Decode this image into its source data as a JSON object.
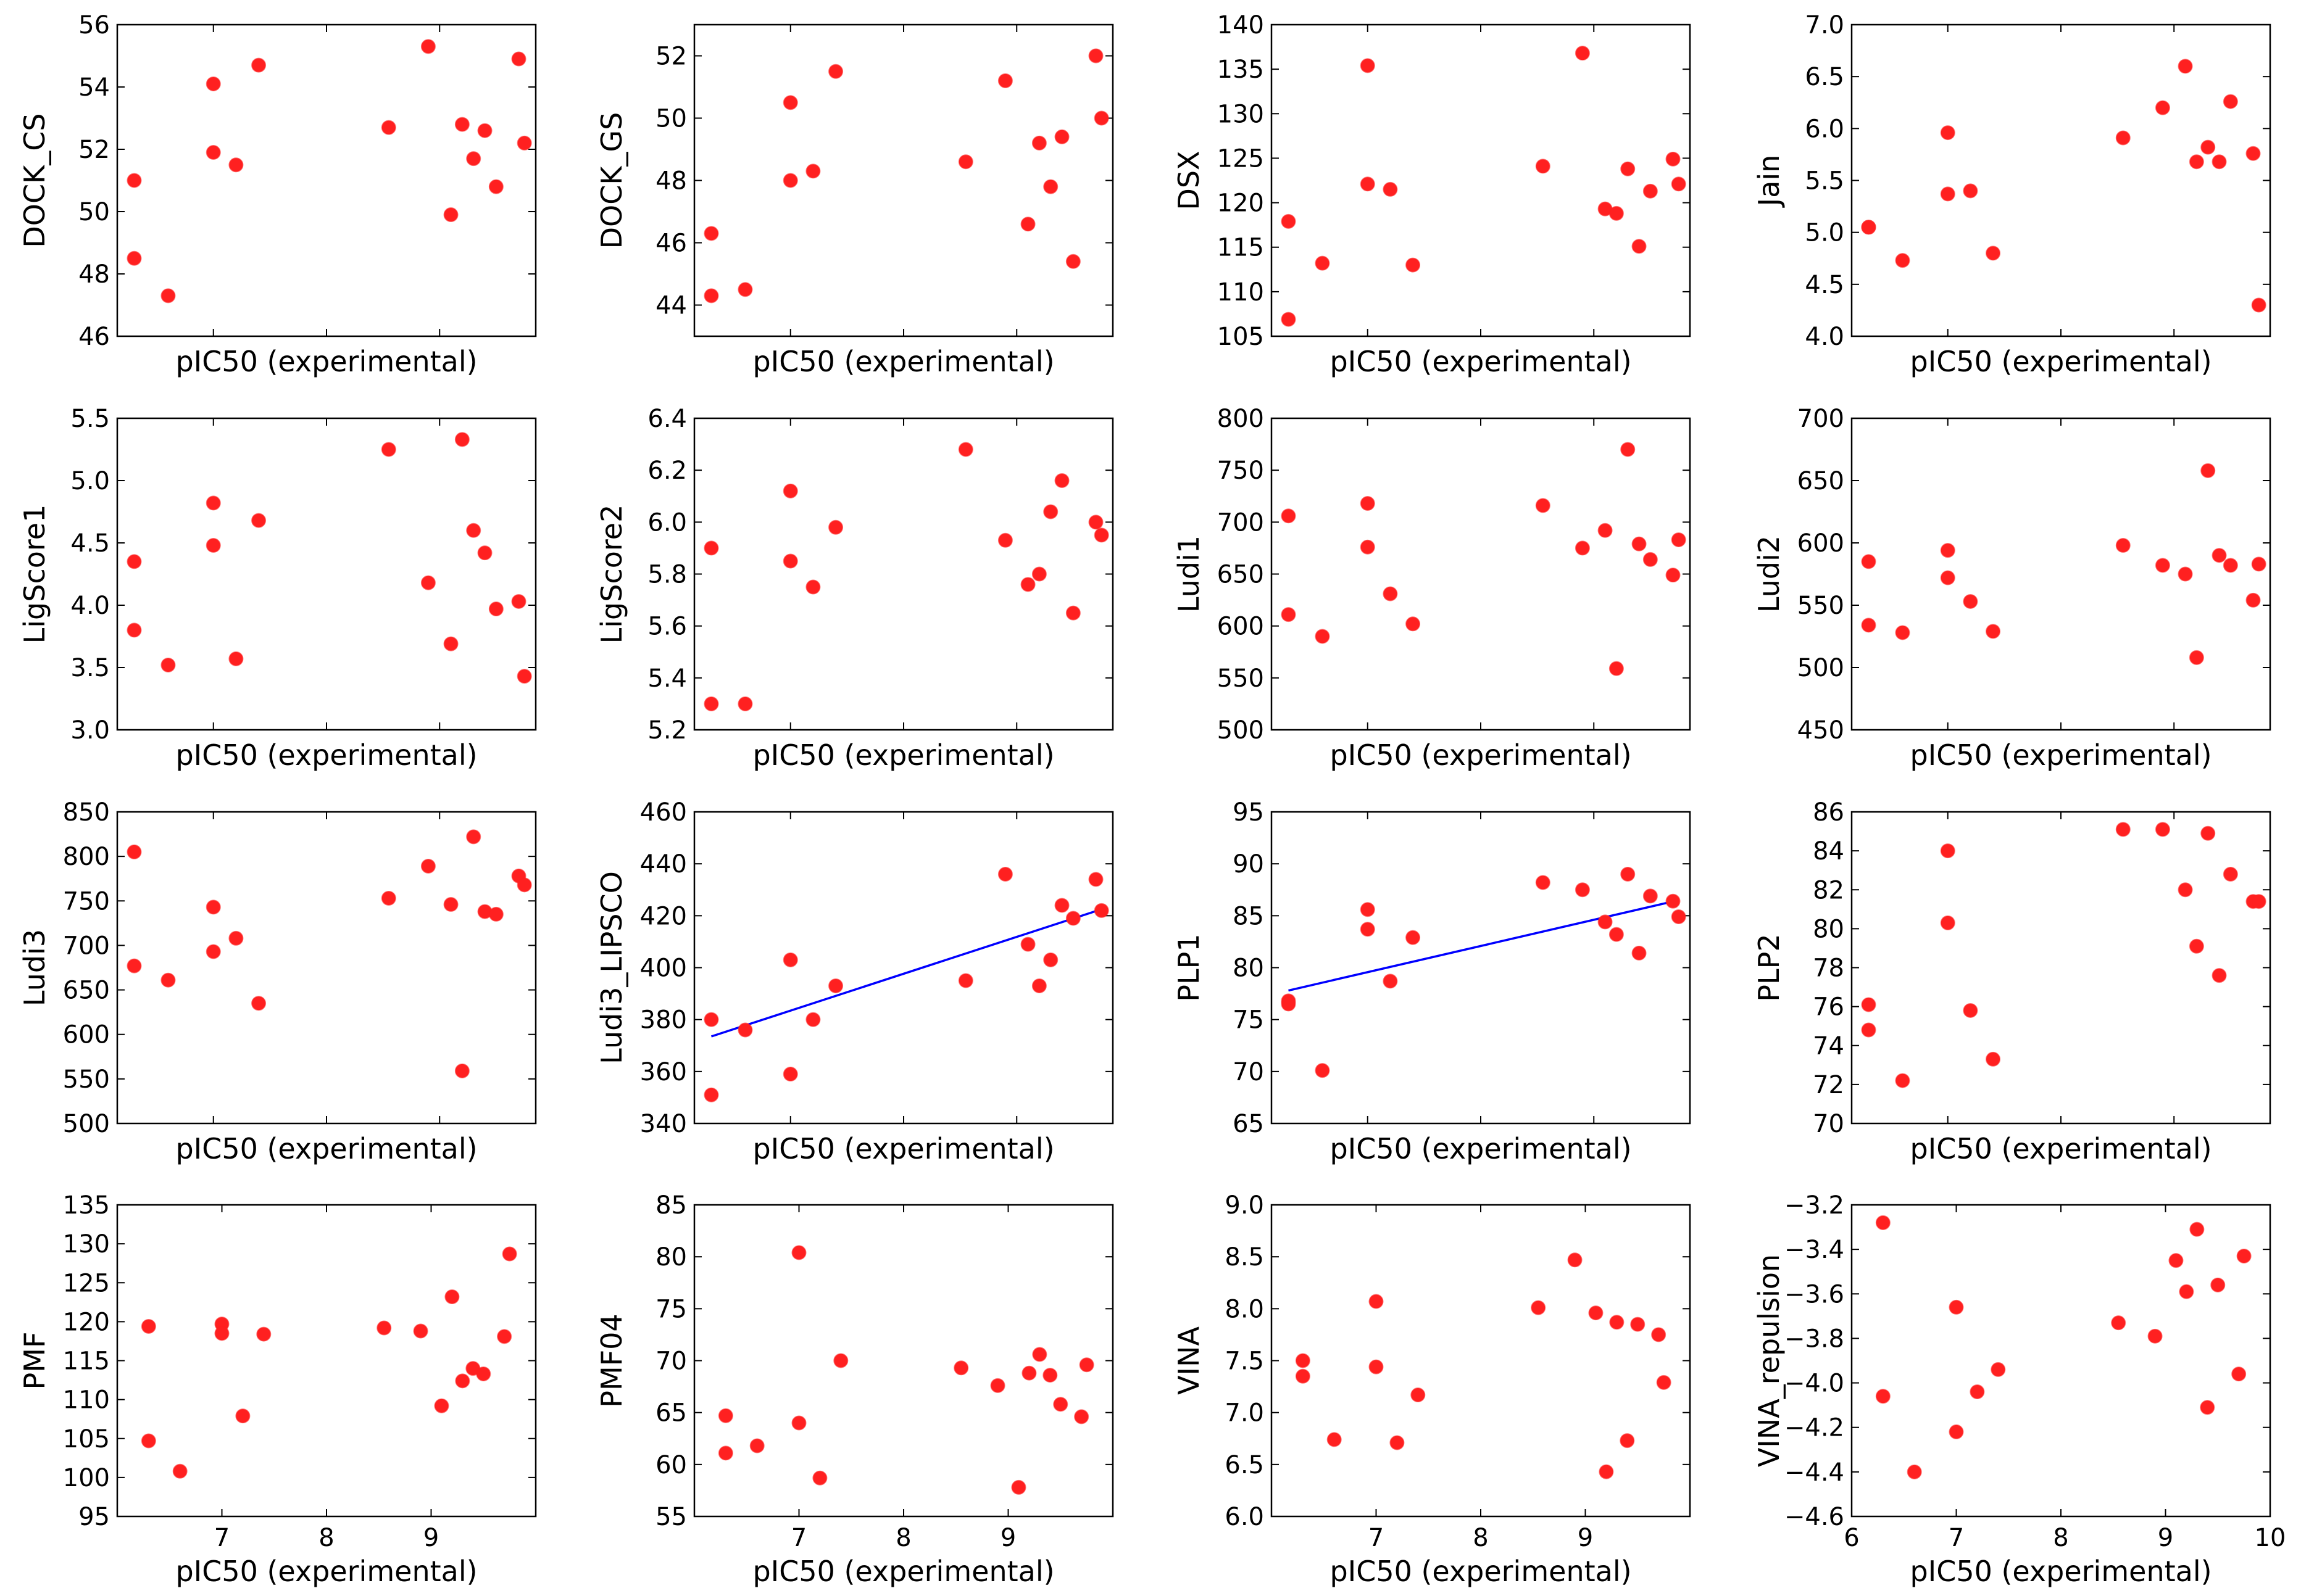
{
  "chart_data": {
    "type": "scatter",
    "layout": {
      "rows": 4,
      "cols": 4
    },
    "shared_x": [
      6.3,
      6.3,
      6.6,
      7.0,
      7.0,
      7.2,
      7.4,
      8.55,
      8.9,
      9.1,
      9.2,
      9.3,
      9.4,
      9.5,
      9.7,
      9.75
    ],
    "xlim": [
      6.15,
      9.85
    ],
    "xticks": [
      7,
      8,
      9
    ],
    "xlabel": "pIC50 (experimental)",
    "bottom_row_xlim": [
      6,
      10
    ],
    "bottom_row_xticks": [
      7,
      8,
      9
    ],
    "last_panel_xticks": [
      6,
      7,
      8,
      9,
      10
    ],
    "panels": [
      {
        "ylabel": "DOCK_CS",
        "ylim": [
          46,
          56
        ],
        "yticks": [
          "46",
          "48",
          "50",
          "52",
          "54",
          "56"
        ],
        "values": [
          51.0,
          48.5,
          47.3,
          54.1,
          51.9,
          51.5,
          54.7,
          52.7,
          55.3,
          49.9,
          52.8,
          51.7,
          52.6,
          50.8,
          54.9,
          52.2
        ]
      },
      {
        "ylabel": "DOCK_GS",
        "ylim": [
          43,
          53
        ],
        "yticks": [
          "44",
          "46",
          "48",
          "50",
          "52"
        ],
        "values": [
          46.3,
          44.3,
          44.5,
          50.5,
          48.0,
          48.3,
          51.5,
          48.6,
          51.2,
          46.6,
          49.2,
          47.8,
          49.4,
          45.4,
          52.0,
          50.0
        ]
      },
      {
        "ylabel": "DSX",
        "ylim": [
          105,
          140
        ],
        "yticks": [
          "105",
          "110",
          "115",
          "120",
          "125",
          "130",
          "135",
          "140"
        ],
        "values": [
          117.9,
          106.9,
          113.2,
          135.4,
          122.1,
          121.5,
          113.0,
          124.1,
          136.8,
          119.3,
          118.8,
          123.8,
          115.1,
          121.3,
          124.9,
          122.1
        ]
      },
      {
        "ylabel": "Jain",
        "ylim": [
          4.0,
          7.0
        ],
        "yticks": [
          "4.0",
          "4.5",
          "5.0",
          "5.5",
          "6.0",
          "6.5",
          "7.0"
        ],
        "values": [
          5.05,
          5.05,
          4.73,
          5.96,
          5.37,
          5.4,
          4.8,
          5.91,
          6.2,
          6.6,
          5.68,
          5.82,
          5.68,
          6.26,
          5.76,
          4.3
        ]
      },
      {
        "ylabel": "LigScore1",
        "ylim": [
          3.0,
          5.5
        ],
        "yticks": [
          "3.0",
          "3.5",
          "4.0",
          "4.5",
          "5.0",
          "5.5"
        ],
        "values": [
          4.35,
          3.8,
          3.52,
          4.82,
          4.48,
          3.57,
          4.68,
          5.25,
          4.18,
          3.69,
          5.33,
          4.6,
          4.42,
          3.97,
          4.03,
          3.43
        ]
      },
      {
        "ylabel": "LigScore2",
        "ylim": [
          5.2,
          6.4
        ],
        "yticks": [
          "5.2",
          "5.4",
          "5.6",
          "5.8",
          "6.0",
          "6.2",
          "6.4"
        ],
        "values": [
          5.9,
          5.3,
          5.3,
          6.12,
          5.85,
          5.75,
          5.98,
          6.28,
          5.93,
          5.76,
          5.8,
          6.04,
          6.16,
          5.65,
          6.0,
          5.95
        ]
      },
      {
        "ylabel": "Ludi1",
        "ylim": [
          500,
          800
        ],
        "yticks": [
          "500",
          "550",
          "600",
          "650",
          "700",
          "750",
          "800"
        ],
        "values": [
          706,
          611,
          590,
          718,
          676,
          631,
          602,
          716,
          675,
          692,
          559,
          770,
          679,
          664,
          649,
          683
        ]
      },
      {
        "ylabel": "Ludi2",
        "ylim": [
          450,
          700
        ],
        "yticks": [
          "450",
          "500",
          "550",
          "600",
          "650",
          "700"
        ],
        "values": [
          585,
          534,
          528,
          594,
          572,
          553,
          529,
          598,
          582,
          575,
          508,
          658,
          590,
          582,
          554,
          583
        ]
      },
      {
        "ylabel": "Ludi3",
        "ylim": [
          500,
          850
        ],
        "yticks": [
          "500",
          "550",
          "600",
          "650",
          "700",
          "750",
          "800",
          "850"
        ],
        "values": [
          805,
          677,
          661,
          743,
          693,
          708,
          635,
          753,
          789,
          746,
          559,
          822,
          738,
          735,
          778,
          768
        ]
      },
      {
        "ylabel": "Ludi3_LIPSCO",
        "ylim": [
          340,
          460
        ],
        "yticks": [
          "340",
          "360",
          "380",
          "400",
          "420",
          "440",
          "460"
        ],
        "values": [
          380,
          351,
          376,
          403,
          359,
          380,
          393,
          395,
          436,
          409,
          393,
          403,
          424,
          419,
          434,
          422
        ],
        "fit": {
          "x": [
            6.3,
            9.75
          ],
          "y": [
            373.5,
            422.5
          ]
        }
      },
      {
        "ylabel": "PLP1",
        "ylim": [
          65,
          95
        ],
        "yticks": [
          "65",
          "70",
          "75",
          "80",
          "85",
          "90",
          "95"
        ],
        "values": [
          76.8,
          76.5,
          70.1,
          85.6,
          83.7,
          78.7,
          82.9,
          88.2,
          87.5,
          84.4,
          83.2,
          89.0,
          81.4,
          86.9,
          86.4,
          84.9
        ],
        "fit": {
          "x": [
            6.3,
            9.75
          ],
          "y": [
            77.8,
            86.5
          ]
        }
      },
      {
        "ylabel": "PLP2",
        "ylim": [
          70,
          86
        ],
        "yticks": [
          "70",
          "72",
          "74",
          "76",
          "78",
          "80",
          "82",
          "84",
          "86"
        ],
        "values": [
          76.1,
          74.8,
          72.2,
          84.0,
          80.3,
          75.8,
          73.3,
          85.1,
          85.1,
          82.0,
          79.1,
          84.9,
          77.6,
          82.8,
          81.4,
          81.4
        ]
      },
      {
        "ylabel": "PMF",
        "ylim": [
          95,
          135
        ],
        "yticks": [
          "95",
          "100",
          "105",
          "110",
          "115",
          "120",
          "125",
          "130",
          "135"
        ],
        "values": [
          119.4,
          104.7,
          100.8,
          119.7,
          118.5,
          107.9,
          118.4,
          119.2,
          118.8,
          109.2,
          123.2,
          112.4,
          114.0,
          113.3,
          118.1,
          128.7
        ]
      },
      {
        "ylabel": "PMF04",
        "ylim": [
          55,
          85
        ],
        "yticks": [
          "55",
          "60",
          "65",
          "70",
          "75",
          "80",
          "85"
        ],
        "values": [
          64.7,
          61.1,
          61.8,
          80.4,
          64.0,
          58.7,
          70.0,
          69.3,
          67.6,
          57.8,
          68.8,
          70.6,
          68.6,
          65.8,
          64.6,
          69.6
        ]
      },
      {
        "ylabel": "VINA",
        "ylim": [
          6.0,
          9.0
        ],
        "yticks": [
          "6.0",
          "6.5",
          "7.0",
          "7.5",
          "8.0",
          "8.5",
          "9.0"
        ],
        "values": [
          7.5,
          7.35,
          6.74,
          8.07,
          7.44,
          6.71,
          7.17,
          8.01,
          8.47,
          7.96,
          6.43,
          7.87,
          6.73,
          7.85,
          7.75,
          7.29
        ]
      },
      {
        "ylabel": "VINA_repulsion",
        "ylim": [
          -4.6,
          -3.2
        ],
        "yticks": [
          "−4.6",
          "−4.4",
          "−4.2",
          "−4.0",
          "−3.8",
          "−3.6",
          "−3.4",
          "−3.2"
        ],
        "values": [
          -3.28,
          -4.06,
          -4.4,
          -3.66,
          -4.22,
          -4.04,
          -3.94,
          -3.73,
          -3.79,
          -3.45,
          -3.59,
          -3.31,
          -4.11,
          -3.56,
          -3.96,
          -3.43
        ]
      }
    ]
  }
}
